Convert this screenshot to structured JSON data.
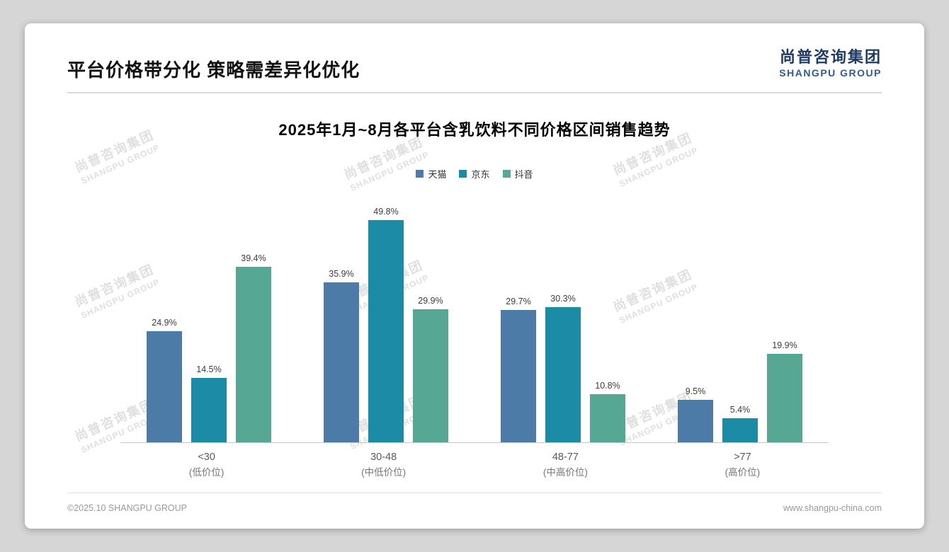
{
  "header": {
    "title": "平台价格带分化 策略需差异化优化",
    "logo_cn": "尚普咨询集团",
    "logo_en": "SHANGPU GROUP"
  },
  "chart_data": {
    "type": "bar",
    "title": "2025年1月~8月各平台含乳饮料不同价格区间销售趋势",
    "categories": [
      "<30",
      "30-48",
      "48-77",
      ">77"
    ],
    "category_sublabels": [
      "(低价位)",
      "(中低价位)",
      "(中高价位)",
      "(高价位)"
    ],
    "series": [
      {
        "name": "天猫",
        "color": "#4d7ba7",
        "values": [
          24.9,
          35.9,
          29.7,
          9.5
        ]
      },
      {
        "name": "京东",
        "color": "#1b8ba6",
        "values": [
          14.5,
          49.8,
          30.3,
          5.4
        ]
      },
      {
        "name": "抖音",
        "color": "#57a795",
        "values": [
          39.4,
          29.9,
          10.8,
          19.9
        ]
      }
    ],
    "value_suffix": "%",
    "ylim": [
      0,
      52
    ],
    "legend_position": "top",
    "grid": false
  },
  "watermark": {
    "cn": "尚普咨询集团",
    "en": "SHANGPU GROUP"
  },
  "footer": {
    "left": "©2025.10 SHANGPU GROUP",
    "right": "www.shangpu-china.com"
  }
}
